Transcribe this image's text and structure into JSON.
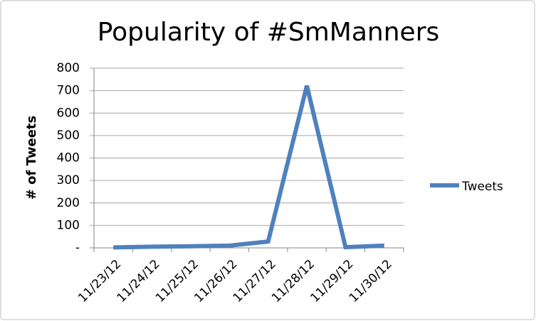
{
  "chart_data": {
    "type": "line",
    "title": "Popularity of #SmManners",
    "y_label": "# of Tweets",
    "categories": [
      "11/23/12",
      "11/24/12",
      "11/25/12",
      "11/26/12",
      "11/27/12",
      "11/28/12",
      "11/29/12",
      "11/30/12"
    ],
    "series": [
      {
        "name": "Tweets",
        "color": "#4f81bd",
        "values": [
          2,
          5,
          7,
          10,
          28,
          722,
          3,
          10
        ]
      }
    ],
    "ylim": [
      0,
      800
    ],
    "yticks": [
      {
        "value": 0,
        "label": "-"
      },
      100,
      200,
      300,
      400,
      500,
      600,
      700,
      800
    ],
    "grid": true,
    "legend": "right"
  }
}
